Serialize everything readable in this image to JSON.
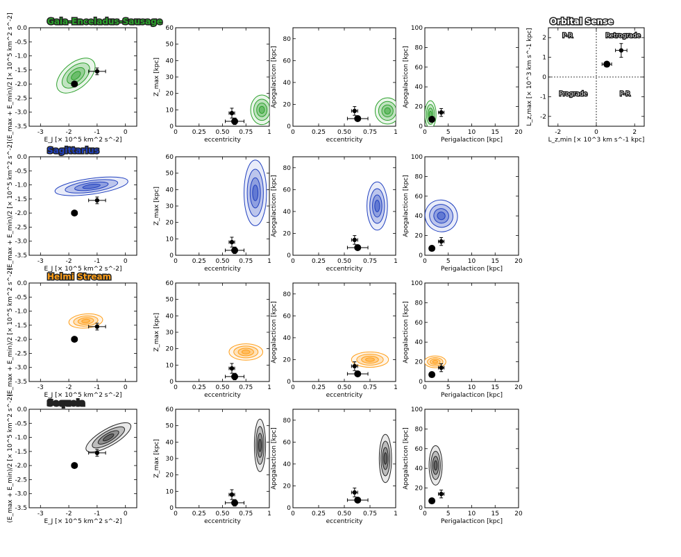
{
  "chart_data": {
    "type": "contour",
    "figure": "Orbital parameter comparison of satellites with halo substructures",
    "columns": [
      {
        "key": "energy",
        "xlabel": "E_J [× 10^5 km^2 s^-2]",
        "ylabel": "(E_max + E_min)/2 [× 10^5 km^2 s^-2]",
        "xlim": [
          -3.4,
          0.4
        ],
        "ylim": [
          -3.5,
          0.0
        ],
        "xticks": [
          -3,
          -2,
          -1,
          0
        ],
        "yticks": [
          0.0,
          -0.5,
          -1.0,
          -1.5,
          -2.0,
          -2.5,
          -3.0,
          -3.5
        ]
      },
      {
        "key": "zmax",
        "xlabel": "eccentricity",
        "ylabel": "Z_max [kpc]",
        "xlim": [
          0,
          1
        ],
        "ylim": [
          0,
          60
        ],
        "xticks": [
          0.0,
          0.25,
          0.5,
          0.75,
          1.0
        ],
        "yticks": [
          0,
          10,
          20,
          30,
          40,
          50,
          60
        ]
      },
      {
        "key": "apo_ecc",
        "xlabel": "eccentricity",
        "ylabel": "Apogalacticon [kpc]",
        "xlim": [
          0,
          1
        ],
        "ylim": [
          0,
          90
        ],
        "xticks": [
          0.0,
          0.25,
          0.5,
          0.75,
          1.0
        ],
        "yticks": [
          0,
          20,
          40,
          60,
          80
        ]
      },
      {
        "key": "apo_peri",
        "xlabel": "Perigalacticon [kpc]",
        "ylabel": "Apogalacticon [kpc]",
        "xlim": [
          0,
          20
        ],
        "ylim": [
          0,
          100
        ],
        "xticks": [
          0,
          5,
          10,
          15,
          20
        ],
        "yticks": [
          0,
          20,
          40,
          60,
          80,
          100
        ]
      }
    ],
    "rows": [
      {
        "name": "Gaia-Enceladus-Sausage",
        "color": "#2ca02c",
        "peaks": [
          {
            "x": -1.75,
            "y": -1.7,
            "rx": 0.8,
            "ry": 0.45,
            "rot": -40
          },
          {
            "x": 0.92,
            "y": 10,
            "rx": 0.12,
            "ry": 9,
            "rot": 0
          },
          {
            "x": 0.92,
            "y": 14,
            "rx": 0.12,
            "ry": 12,
            "rot": 0
          },
          {
            "x": 1.2,
            "y": 12,
            "rx": 1.2,
            "ry": 14,
            "rot": 0
          }
        ]
      },
      {
        "name": "Sagittarius",
        "color": "#1f3fbf",
        "peaks": [
          {
            "x": -1.2,
            "y": -1.05,
            "rx": 1.3,
            "ry": 0.28,
            "rot": -8
          },
          {
            "x": 0.85,
            "y": 38,
            "rx": 0.12,
            "ry": 20,
            "rot": 0
          },
          {
            "x": 0.82,
            "y": 45,
            "rx": 0.1,
            "ry": 22,
            "rot": 0
          },
          {
            "x": 3.5,
            "y": 40,
            "rx": 3.5,
            "ry": 16,
            "rot": 30
          }
        ]
      },
      {
        "name": "Helmi Stream",
        "color": "#ff9f1a",
        "peaks": [
          {
            "x": -1.4,
            "y": -1.35,
            "rx": 0.6,
            "ry": 0.25,
            "rot": -5
          },
          {
            "x": 0.75,
            "y": 18,
            "rx": 0.18,
            "ry": 5,
            "rot": 0
          },
          {
            "x": 0.75,
            "y": 20,
            "rx": 0.18,
            "ry": 7,
            "rot": 0
          },
          {
            "x": 2.2,
            "y": 20,
            "rx": 2.3,
            "ry": 6,
            "rot": 0
          }
        ]
      },
      {
        "name": "Sequoia",
        "color": "#222222",
        "peaks": [
          {
            "x": -0.6,
            "y": -1.0,
            "rx": 0.9,
            "ry": 0.3,
            "rot": -30
          },
          {
            "x": 0.9,
            "y": 38,
            "rx": 0.06,
            "ry": 16,
            "rot": 0
          },
          {
            "x": 0.9,
            "y": 45,
            "rx": 0.06,
            "ry": 22,
            "rot": 0
          },
          {
            "x": 2.3,
            "y": 43,
            "rx": 1.4,
            "ry": 20,
            "rot": 0
          }
        ]
      }
    ],
    "satellites": {
      "energy": [
        {
          "x": -1.8,
          "y": -2.0,
          "xerr": 0.1,
          "yerr": 0.05,
          "big": true
        },
        {
          "x": -1.0,
          "y": -1.55,
          "xerr": 0.3,
          "yerr": 0.12,
          "big": false
        }
      ],
      "zmax": [
        {
          "x": 0.63,
          "y": 3,
          "xerr": 0.1,
          "yerr": 2,
          "big": true
        },
        {
          "x": 0.6,
          "y": 8,
          "xerr": 0.03,
          "yerr": 3,
          "big": false
        }
      ],
      "apo_ecc": [
        {
          "x": 0.63,
          "y": 7,
          "xerr": 0.1,
          "yerr": 2,
          "big": true
        },
        {
          "x": 0.6,
          "y": 14,
          "xerr": 0.03,
          "yerr": 4,
          "big": false
        }
      ],
      "apo_peri": [
        {
          "x": 1.5,
          "y": 7,
          "xerr": 0.5,
          "yerr": 1,
          "big": true
        },
        {
          "x": 3.5,
          "y": 14,
          "xerr": 0.6,
          "yerr": 4,
          "big": false
        }
      ]
    },
    "orbital_sense": {
      "title": "Orbital Sense",
      "xlabel": "L_z,min [× 10^3 km s^-1 kpc]",
      "ylabel": "L_z,max [× 10^3 km s^-1 kpc]",
      "xlim": [
        -2.5,
        2.5
      ],
      "ylim": [
        -2.5,
        2.5
      ],
      "xticks": [
        -2,
        0,
        2
      ],
      "yticks": [
        -2,
        -1,
        0,
        1,
        2
      ],
      "quadrant_labels": {
        "top_left": "P-R",
        "top_right": "Retrograde",
        "bottom_left": "Prograde",
        "bottom_right": "P-R"
      },
      "points": [
        {
          "x": 0.55,
          "y": 0.65,
          "xerr": 0.25,
          "yerr": 0.08,
          "big": true
        },
        {
          "x": 1.3,
          "y": 1.35,
          "xerr": 0.3,
          "yerr": 0.35,
          "big": false
        }
      ]
    }
  }
}
